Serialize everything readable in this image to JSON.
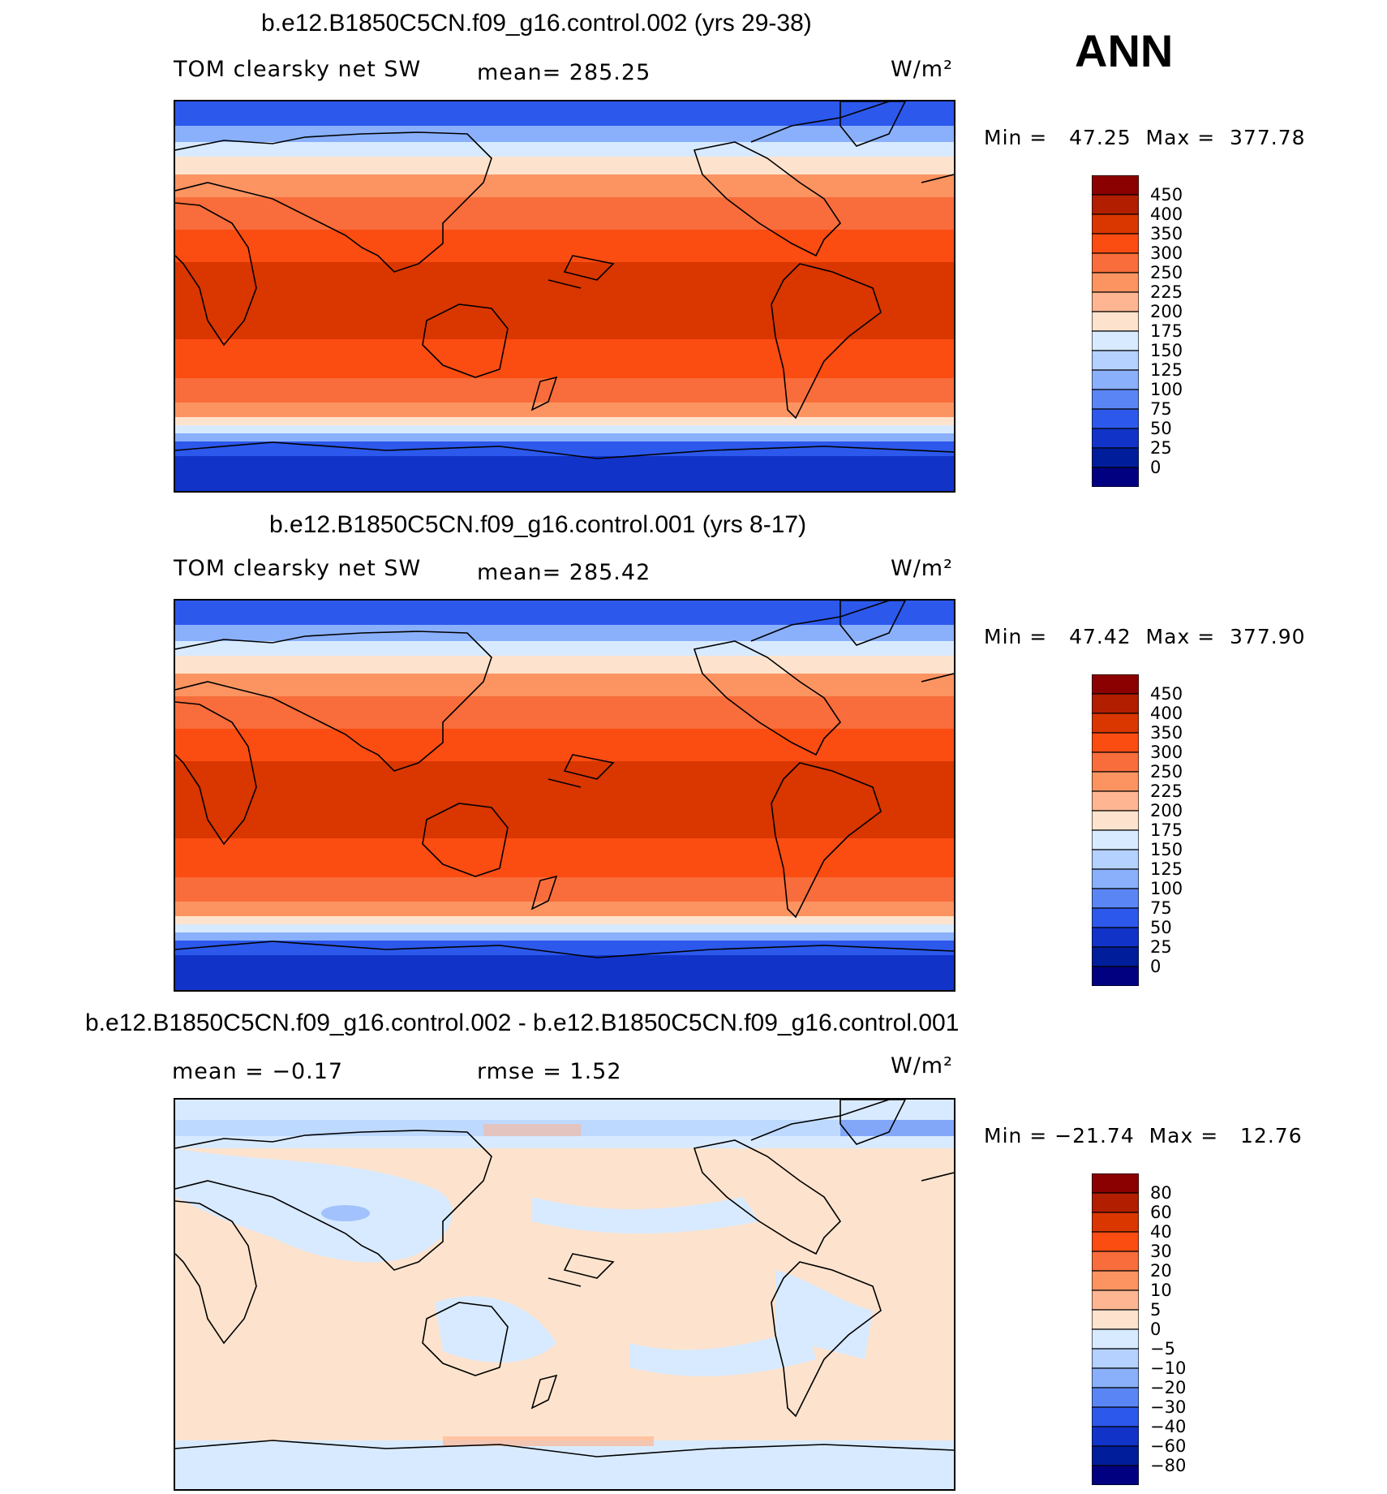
{
  "season": "ANN",
  "units_label": "W/m²",
  "panels": [
    {
      "title": "b.e12.B1850C5CN.f09_g16.control.002 (yrs 29-38)",
      "variable": "TOM clearsky net SW",
      "stat_a": "mean=  285.25",
      "stat_b": "",
      "minmax": "Min =   47.25  Max =  377.78",
      "levels": [
        "450",
        "400",
        "350",
        "300",
        "250",
        "225",
        "200",
        "175",
        "150",
        "125",
        "100",
        "75",
        "50",
        "25",
        "0"
      ],
      "colors": [
        "#8b0000",
        "#b21e00",
        "#d93600",
        "#fb4c12",
        "#f86d3b",
        "#fc9462",
        "#feb692",
        "#fde3cd",
        "#d8eaff",
        "#b4d1ff",
        "#8ab0fb",
        "#5a86f5",
        "#2c58ec",
        "#1133c8",
        "#001e9b",
        "#000080"
      ]
    },
    {
      "title": "b.e12.B1850C5CN.f09_g16.control.001 (yrs 8-17)",
      "variable": "TOM clearsky net SW",
      "stat_a": "mean=  285.42",
      "stat_b": "",
      "minmax": "Min =   47.42  Max =  377.90",
      "levels": [
        "450",
        "400",
        "350",
        "300",
        "250",
        "225",
        "200",
        "175",
        "150",
        "125",
        "100",
        "75",
        "50",
        "25",
        "0"
      ],
      "colors": [
        "#8b0000",
        "#b21e00",
        "#d93600",
        "#fb4c12",
        "#f86d3b",
        "#fc9462",
        "#feb692",
        "#fde3cd",
        "#d8eaff",
        "#b4d1ff",
        "#8ab0fb",
        "#5a86f5",
        "#2c58ec",
        "#1133c8",
        "#001e9b",
        "#000080"
      ]
    },
    {
      "title": "b.e12.B1850C5CN.f09_g16.control.002 - b.e12.B1850C5CN.f09_g16.control.001",
      "variable": "",
      "stat_a": "mean =   −0.17",
      "stat_b": "rmse =    1.52",
      "minmax": "Min = −21.74  Max =   12.76",
      "levels": [
        "80",
        "60",
        "40",
        "30",
        "20",
        "10",
        "5",
        "0",
        "−5",
        "−10",
        "−20",
        "−30",
        "−40",
        "−60",
        "−80"
      ],
      "colors": [
        "#8b0000",
        "#b21e00",
        "#d93600",
        "#fb4c12",
        "#f86d3b",
        "#fc9462",
        "#feb692",
        "#fde3cd",
        "#d8eaff",
        "#b4d1ff",
        "#8ab0fb",
        "#5a86f5",
        "#2c58ec",
        "#1133c8",
        "#001e9b",
        "#000080"
      ]
    }
  ],
  "map_colors": {
    "deep_red": "#d93600",
    "red": "#fb4c12",
    "orange": "#f86d3b",
    "light_orange": "#fc9462",
    "peach": "#feb692",
    "cream": "#fde3cd",
    "pale_blue": "#d8eaff",
    "light_blue": "#b4d1ff",
    "mid_blue": "#5a86f5",
    "blue": "#2c58ec",
    "dark_blue": "#1133c8"
  }
}
